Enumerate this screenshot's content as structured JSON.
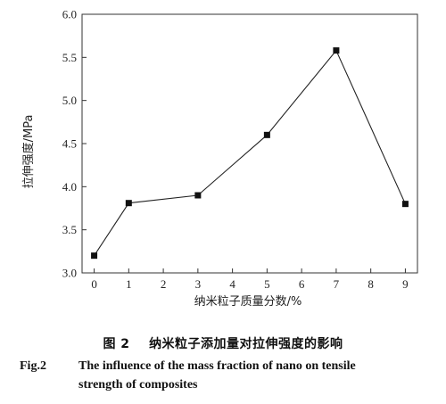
{
  "chart_data": {
    "type": "line",
    "x": [
      0,
      1,
      3,
      5,
      7,
      9
    ],
    "y": [
      3.2,
      3.81,
      3.9,
      4.6,
      5.58,
      3.8
    ],
    "xticks": [
      "0",
      "1",
      "2",
      "3",
      "4",
      "5",
      "6",
      "7",
      "8",
      "9"
    ],
    "yticks": [
      "3.0",
      "3.5",
      "4.0",
      "4.5",
      "5.0",
      "5.5",
      "6.0"
    ],
    "xlim": [
      -0.35,
      9.35
    ],
    "ylim": [
      3.0,
      6.0
    ],
    "xlabel": "纳米粒子质量分数/%",
    "ylabel": "拉伸强度/MPa",
    "marker": "square",
    "grid": false,
    "line_color": "#222222",
    "marker_color": "#111111"
  },
  "caption": {
    "zh_label": "图 2",
    "zh_text": "纳米粒子添加量对拉伸强度的影响",
    "en_label": "Fig.2",
    "en_text_line1": "The influence of the mass fraction of nano on tensile",
    "en_text_line2": "strength of composites"
  }
}
